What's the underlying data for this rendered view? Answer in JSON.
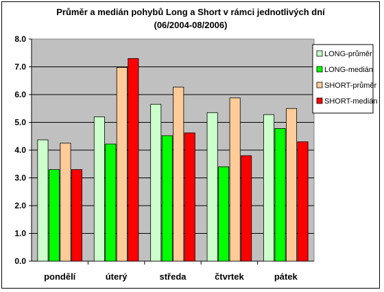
{
  "chart_data": {
    "type": "bar",
    "title": "Průměr a medián pohybů Long a Short v rámci jednotlivých dní",
    "subtitle": "(06/2004-08/2006)",
    "categories": [
      "pondělí",
      "úterý",
      "středa",
      "čtvrtek",
      "pátek"
    ],
    "series": [
      {
        "name": "LONG-průměr",
        "color": "#ccffcc",
        "values": [
          4.37,
          5.2,
          5.65,
          5.35,
          5.28
        ]
      },
      {
        "name": "LONG-medián",
        "color": "#00ff00",
        "values": [
          3.3,
          4.22,
          4.52,
          3.4,
          4.78
        ]
      },
      {
        "name": "SHORT-průměr",
        "color": "#ffcc99",
        "values": [
          4.25,
          6.98,
          6.27,
          5.88,
          5.5
        ]
      },
      {
        "name": "SHORT-medián",
        "color": "#ff0000",
        "values": [
          3.3,
          7.3,
          4.62,
          3.8,
          4.3
        ]
      }
    ],
    "ylim": [
      0,
      8
    ],
    "yticks": [
      "0.0",
      "1.0",
      "2.0",
      "3.0",
      "4.0",
      "5.0",
      "6.0",
      "7.0",
      "8.0"
    ],
    "grid": true,
    "plot_background": "#c0c0c0",
    "legend_position": "right"
  }
}
